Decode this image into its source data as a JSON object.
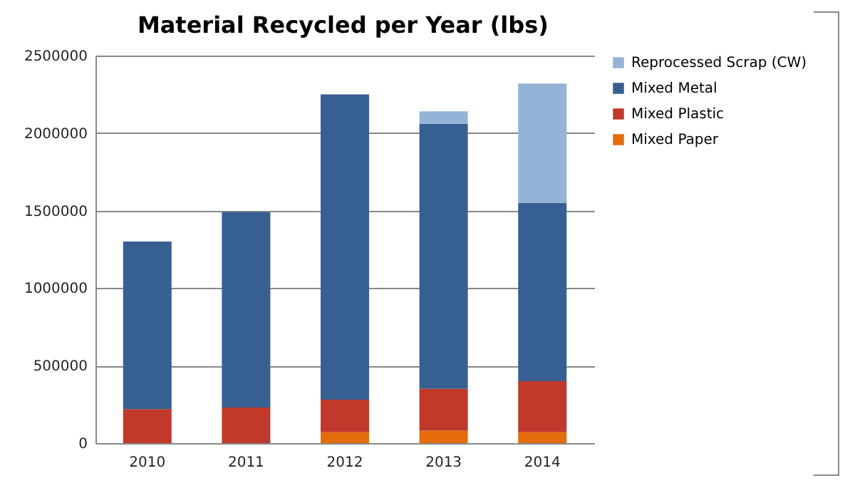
{
  "chart_data": {
    "type": "bar",
    "title": "Material Recycled per Year (lbs)",
    "categories": [
      "2010",
      "2011",
      "2012",
      "2013",
      "2014"
    ],
    "stacked": true,
    "series": [
      {
        "name": "Mixed Paper",
        "color": "#e46c0a",
        "values": [
          0,
          0,
          70000,
          80000,
          70000
        ]
      },
      {
        "name": "Mixed Plastic",
        "color": "#c0392b",
        "values": [
          220000,
          230000,
          210000,
          270000,
          330000
        ]
      },
      {
        "name": "Mixed Metal",
        "color": "#376092",
        "values": [
          1080000,
          1260000,
          1970000,
          1710000,
          1150000
        ]
      },
      {
        "name": "Reprocessed Scrap (CW)",
        "color": "#95b3d7",
        "values": [
          0,
          0,
          0,
          80000,
          770000
        ]
      }
    ],
    "ylim": [
      0,
      2500000
    ],
    "yticks": [
      0,
      500000,
      1000000,
      1500000,
      2000000,
      2500000
    ],
    "grid": "y",
    "legend": "right"
  }
}
